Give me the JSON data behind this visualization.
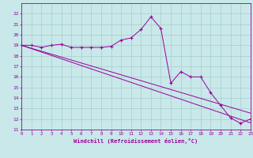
{
  "xlabel": "Windchill (Refroidissement éolien,°C)",
  "x_data": [
    0,
    1,
    2,
    3,
    4,
    5,
    6,
    7,
    8,
    9,
    10,
    11,
    12,
    13,
    14,
    15,
    16,
    17,
    18,
    19,
    20,
    21,
    22,
    23
  ],
  "y_main": [
    19.0,
    19.0,
    18.8,
    19.0,
    19.1,
    18.8,
    18.8,
    18.8,
    18.8,
    18.9,
    19.5,
    19.7,
    20.5,
    21.7,
    20.6,
    15.4,
    16.5,
    16.0,
    16.0,
    14.5,
    13.3,
    12.1,
    11.6,
    12.0
  ],
  "y_trend1": [
    19.0,
    18.68,
    18.36,
    18.04,
    17.72,
    17.4,
    17.08,
    16.76,
    16.44,
    16.12,
    15.8,
    15.48,
    15.16,
    14.84,
    14.52,
    14.2,
    13.88,
    13.56,
    13.24,
    12.92,
    12.6,
    12.28,
    11.96,
    11.64
  ],
  "y_trend2": [
    19.0,
    18.72,
    18.44,
    18.16,
    17.88,
    17.6,
    17.32,
    17.04,
    16.76,
    16.48,
    16.2,
    15.92,
    15.64,
    15.36,
    15.08,
    14.8,
    14.52,
    14.24,
    13.96,
    13.68,
    13.4,
    13.12,
    12.84,
    12.56
  ],
  "line_color": "#990099",
  "bg_color": "#c8e8ea",
  "grid_color": "#aacccc",
  "ylim": [
    11,
    23
  ],
  "xlim": [
    0,
    23
  ]
}
